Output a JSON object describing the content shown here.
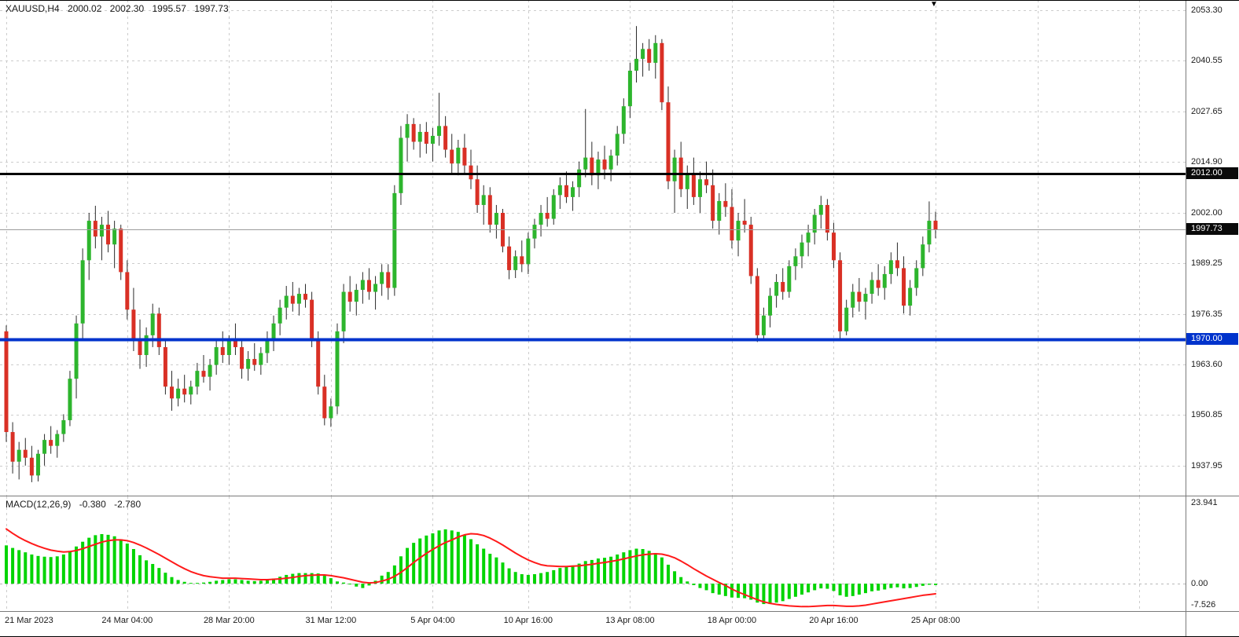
{
  "header": {
    "symbol_period": "XAUUSD,H4",
    "open": "2000.02",
    "high": "2002.30",
    "low": "1995.57",
    "close": "1997.73"
  },
  "indicator": {
    "name": "MACD(12,26,9)",
    "value_main": "-0.380",
    "value_signal": "-2.780"
  },
  "icons": {
    "shift_marker": "▼"
  },
  "colors": {
    "background": "#ffffff",
    "grid": "#cccccc",
    "candle_up": "#2db52d",
    "candle_down": "#d93025",
    "wick": "#2b2b2b",
    "macd_histogram": "#00d400",
    "macd_signal": "#ff1a1a",
    "level_black": "#000000",
    "level_blue": "#0033cc",
    "bid_line": "#9b9b9b",
    "axis_text": "#1a1a1a",
    "badge_text": "#ffffff"
  },
  "price_axis": {
    "ticks": [
      "2053.30",
      "2040.55",
      "2027.65",
      "2014.90",
      "2002.00",
      "1989.25",
      "1976.35",
      "1963.60",
      "1950.85",
      "1937.95"
    ]
  },
  "macd_axis": {
    "ticks": [
      "23.941",
      "0.00",
      "-7.526"
    ]
  },
  "chart_data": [
    {
      "type": "candlestick",
      "title": "XAUUSD H4 candlestick chart",
      "symbol": "XAUUSD",
      "timeframe": "H4",
      "y_range": [
        1930.4,
        2055.9
      ],
      "grid": true,
      "levels": [
        {
          "price": 2012.0,
          "label": "2012.00",
          "color": "#000000",
          "width": 3,
          "badge_color": "#0a0a0a",
          "role": "resistance"
        },
        {
          "price": 1997.73,
          "label": "1997.73",
          "color": "#9b9b9b",
          "width": 1,
          "badge_color": "#0a0a0a",
          "role": "bid"
        },
        {
          "price": 1970.0,
          "label": "1970.00",
          "color": "#0033cc",
          "width": 4,
          "badge_color": "#0033cc",
          "role": "support"
        }
      ],
      "x_labels": [
        {
          "label": "21 Mar 2023",
          "bar": 0
        },
        {
          "label": "24 Mar 04:00",
          "bar": 19
        },
        {
          "label": "28 Mar 20:00",
          "bar": 35
        },
        {
          "label": "31 Mar 12:00",
          "bar": 51
        },
        {
          "label": "5 Apr 04:00",
          "bar": 67
        },
        {
          "label": "10 Apr 16:00",
          "bar": 82
        },
        {
          "label": "13 Apr 08:00",
          "bar": 98
        },
        {
          "label": "18 Apr 00:00",
          "bar": 114
        },
        {
          "label": "20 Apr 16:00",
          "bar": 130
        },
        {
          "label": "25 Apr 08:00",
          "bar": 146
        }
      ],
      "future_grid_bars": [
        162,
        178
      ],
      "candles": [
        [
          1972,
          1973.5,
          1944,
          1946.5
        ],
        [
          1946.5,
          1949,
          1936,
          1939
        ],
        [
          1939,
          1944,
          1934.5,
          1942
        ],
        [
          1942,
          1945,
          1938,
          1940
        ],
        [
          1940,
          1943,
          1933.8,
          1935.5
        ],
        [
          1935.5,
          1942,
          1934,
          1941
        ],
        [
          1941,
          1946,
          1938,
          1944.5
        ],
        [
          1944.5,
          1948,
          1941,
          1943
        ],
        [
          1943,
          1947,
          1940,
          1946
        ],
        [
          1946,
          1951,
          1944,
          1949.5
        ],
        [
          1949.5,
          1962,
          1948,
          1960
        ],
        [
          1960,
          1976,
          1955,
          1974
        ],
        [
          1974,
          1993,
          1970,
          1990
        ],
        [
          1990,
          2002,
          1985,
          2000
        ],
        [
          2000,
          2003.8,
          1993,
          1996
        ],
        [
          1996,
          2001,
          1990,
          1999
        ],
        [
          1999,
          2002.5,
          1992,
          1994
        ],
        [
          1994,
          2000,
          1988,
          1998
        ],
        [
          1998,
          1999,
          1985,
          1987
        ],
        [
          1987,
          1990,
          1975,
          1977.5
        ],
        [
          1977.5,
          1983,
          1967,
          1970
        ],
        [
          1970,
          1975,
          1962.5,
          1966
        ],
        [
          1966,
          1973,
          1963,
          1971
        ],
        [
          1971,
          1979,
          1968,
          1976.5
        ],
        [
          1976.5,
          1978,
          1966,
          1968
        ],
        [
          1968,
          1970,
          1956,
          1958
        ],
        [
          1958,
          1962,
          1951.9,
          1955
        ],
        [
          1955,
          1960,
          1953,
          1957.5
        ],
        [
          1957.5,
          1961,
          1954,
          1956
        ],
        [
          1956,
          1959.5,
          1953.5,
          1958
        ],
        [
          1958,
          1964,
          1956,
          1962
        ],
        [
          1962,
          1966,
          1959,
          1960.5
        ],
        [
          1960.5,
          1965,
          1957,
          1963.5
        ],
        [
          1963.5,
          1970,
          1961,
          1968
        ],
        [
          1968,
          1972,
          1964,
          1966
        ],
        [
          1966,
          1971,
          1963.5,
          1970
        ],
        [
          1970,
          1974,
          1966,
          1968
        ],
        [
          1968,
          1970,
          1960,
          1962.5
        ],
        [
          1962.5,
          1967,
          1959.5,
          1965
        ],
        [
          1965,
          1969,
          1962,
          1963.5
        ],
        [
          1963.5,
          1968,
          1961,
          1966.5
        ],
        [
          1966.5,
          1972,
          1964,
          1970
        ],
        [
          1970,
          1976,
          1967,
          1974
        ],
        [
          1974,
          1980,
          1971,
          1978
        ],
        [
          1978,
          1983.5,
          1975,
          1981
        ],
        [
          1981,
          1984.5,
          1977,
          1979
        ],
        [
          1979,
          1983,
          1976,
          1981.5
        ],
        [
          1981.5,
          1984,
          1978,
          1980
        ],
        [
          1980,
          1982,
          1968,
          1970
        ],
        [
          1970,
          1972,
          1956,
          1958
        ],
        [
          1958,
          1961,
          1948.2,
          1950
        ],
        [
          1950,
          1955,
          1947.8,
          1953
        ],
        [
          1953,
          1974,
          1951,
          1972
        ],
        [
          1972,
          1984,
          1969,
          1982
        ],
        [
          1982,
          1986,
          1977,
          1979.5
        ],
        [
          1979.5,
          1984,
          1976,
          1982.5
        ],
        [
          1982.5,
          1987,
          1979,
          1985
        ],
        [
          1985,
          1988,
          1980,
          1982
        ],
        [
          1982,
          1986,
          1977.5,
          1984
        ],
        [
          1984,
          1989,
          1981,
          1987
        ],
        [
          1987,
          1989,
          1980,
          1983
        ],
        [
          1983,
          2009,
          1981,
          2007
        ],
        [
          2007,
          2024,
          2004,
          2021
        ],
        [
          2021,
          2027,
          2015,
          2024.5
        ],
        [
          2024.5,
          2026,
          2018,
          2020
        ],
        [
          2020,
          2024.5,
          2016,
          2022.5
        ],
        [
          2022.5,
          2025,
          2017,
          2019.5
        ],
        [
          2019.5,
          2023.5,
          2015,
          2021.5
        ],
        [
          2021.5,
          2032.4,
          2019,
          2024
        ],
        [
          2024,
          2026.5,
          2016,
          2018
        ],
        [
          2018,
          2022,
          2012,
          2014.5
        ],
        [
          2014.5,
          2020.5,
          2011.5,
          2018.5
        ],
        [
          2018.5,
          2022,
          2012,
          2014
        ],
        [
          2014,
          2018,
          2008,
          2010.5
        ],
        [
          2010.5,
          2014,
          2002,
          2004
        ],
        [
          2004,
          2009,
          1999,
          2006.5
        ],
        [
          2006.5,
          2008.5,
          1997,
          1999
        ],
        [
          1999,
          2004,
          1995.5,
          2002
        ],
        [
          2002,
          2003,
          1992,
          1993.5
        ],
        [
          1993.5,
          1996,
          1985.2,
          1987.5
        ],
        [
          1987.5,
          1992.5,
          1985.5,
          1991
        ],
        [
          1991,
          1995,
          1987,
          1989
        ],
        [
          1989,
          1997,
          1986.5,
          1995.5
        ],
        [
          1995.5,
          2000.5,
          1993,
          1999
        ],
        [
          1999,
          2004,
          1996,
          2002
        ],
        [
          2002,
          2006,
          1998.5,
          2000.5
        ],
        [
          2000.5,
          2008,
          1999,
          2006.5
        ],
        [
          2006.5,
          2011,
          2003,
          2009
        ],
        [
          2009,
          2012.5,
          2004.5,
          2006
        ],
        [
          2006,
          2010,
          2002.5,
          2008.5
        ],
        [
          2008.5,
          2015,
          2006,
          2013
        ],
        [
          2013,
          2028.3,
          2011,
          2016
        ],
        [
          2016,
          2020,
          2009,
          2011.5
        ],
        [
          2011.5,
          2017.5,
          2008,
          2015.5
        ],
        [
          2015.5,
          2019,
          2010.5,
          2013
        ],
        [
          2013,
          2018,
          2010,
          2016.5
        ],
        [
          2016.5,
          2024,
          2014,
          2022
        ],
        [
          2022,
          2031,
          2019.5,
          2029
        ],
        [
          2029,
          2040,
          2026,
          2038
        ],
        [
          2038,
          2049.3,
          2035,
          2041
        ],
        [
          2041,
          2045,
          2036.5,
          2043.5
        ],
        [
          2043.5,
          2046,
          2038,
          2040
        ],
        [
          2040,
          2047,
          2036,
          2045
        ],
        [
          2045,
          2046,
          2028,
          2030
        ],
        [
          2030,
          2034,
          2008,
          2010
        ],
        [
          2010,
          2018,
          2002,
          2016
        ],
        [
          2016,
          2020,
          2006,
          2008
        ],
        [
          2008,
          2014,
          2003,
          2012
        ],
        [
          2012,
          2016,
          2004,
          2006
        ],
        [
          2006,
          2012.5,
          2002,
          2010.5
        ],
        [
          2010.5,
          2015,
          2007,
          2009
        ],
        [
          2009,
          2013,
          1998,
          2000
        ],
        [
          2000,
          2007,
          1996.5,
          2005
        ],
        [
          2005,
          2009.5,
          2001,
          2003.5
        ],
        [
          2003.5,
          2008,
          1993,
          1995
        ],
        [
          1995,
          2002,
          1991,
          2000
        ],
        [
          2000,
          2005.5,
          1997,
          1999
        ],
        [
          1999,
          2001,
          1984,
          1986
        ],
        [
          1986,
          1988,
          1969.3,
          1971
        ],
        [
          1971,
          1978,
          1969.8,
          1976
        ],
        [
          1976,
          1983,
          1973,
          1981
        ],
        [
          1981,
          1986.5,
          1978,
          1984.5
        ],
        [
          1984.5,
          1988,
          1980,
          1982
        ],
        [
          1982,
          1990,
          1980.5,
          1988.5
        ],
        [
          1988.5,
          1993,
          1985,
          1991
        ],
        [
          1991,
          1996.5,
          1988,
          1994.5
        ],
        [
          1994.5,
          1999,
          1991,
          1997
        ],
        [
          1997,
          2003,
          1994,
          2001.5
        ],
        [
          2001.5,
          2006.3,
          1998,
          2004
        ],
        [
          2004,
          2005.5,
          1995,
          1997
        ],
        [
          1997,
          1999.5,
          1988,
          1990
        ],
        [
          1990,
          1992,
          1969.8,
          1972
        ],
        [
          1972,
          1980,
          1971,
          1978
        ],
        [
          1978,
          1984,
          1975.5,
          1982
        ],
        [
          1982,
          1985.5,
          1977,
          1979.5
        ],
        [
          1979.5,
          1983,
          1975,
          1981.5
        ],
        [
          1981.5,
          1987,
          1979,
          1985
        ],
        [
          1985,
          1989,
          1981,
          1983
        ],
        [
          1983,
          1988.5,
          1980,
          1986.5
        ],
        [
          1986.5,
          1992,
          1984,
          1990
        ],
        [
          1990,
          1994.5,
          1986,
          1988
        ],
        [
          1988,
          1991,
          1976.5,
          1978.5
        ],
        [
          1978.5,
          1985,
          1976,
          1983
        ],
        [
          1983,
          1990,
          1981,
          1988
        ],
        [
          1988,
          1996,
          1986,
          1994
        ],
        [
          1994,
          2004.9,
          1992,
          2000
        ],
        [
          2000.02,
          2002.3,
          1995.57,
          1997.73
        ]
      ]
    },
    {
      "type": "bar",
      "name": "MACD(12,26,9)",
      "value_main": -0.38,
      "value_signal": -2.78,
      "y_range": [
        -7.526,
        23.941
      ],
      "y_ticks": [
        23.941,
        0.0,
        -7.526
      ],
      "macd": [
        10.5,
        9.8,
        9.2,
        8.6,
        8.0,
        7.6,
        7.4,
        7.3,
        7.5,
        8.0,
        9.0,
        10.2,
        11.5,
        12.6,
        13.3,
        13.6,
        13.4,
        13.0,
        12.2,
        11.0,
        9.5,
        7.8,
        6.4,
        5.4,
        4.3,
        3.0,
        1.8,
        1.0,
        0.5,
        0.2,
        0.2,
        0.3,
        0.5,
        0.8,
        1.0,
        1.2,
        1.2,
        1.0,
        0.8,
        0.7,
        0.8,
        1.0,
        1.4,
        1.9,
        2.4,
        2.7,
        2.9,
        2.9,
        2.9,
        2.8,
        2.3,
        1.5,
        0.6,
        0.3,
        -0.2,
        -0.8,
        -1.2,
        -0.5,
        0.8,
        2.2,
        3.2,
        5.0,
        7.5,
        9.8,
        11.2,
        12.4,
        13.2,
        13.8,
        14.6,
        14.9,
        14.6,
        14.2,
        13.4,
        12.2,
        10.8,
        9.6,
        8.2,
        7.2,
        5.8,
        4.2,
        3.2,
        2.6,
        2.4,
        2.6,
        2.9,
        3.2,
        3.7,
        4.3,
        4.6,
        5.0,
        5.5,
        6.2,
        6.5,
        6.9,
        7.1,
        7.4,
        8.0,
        8.6,
        9.2,
        9.6,
        9.5,
        9.0,
        8.4,
        7.2,
        5.2,
        3.4,
        1.8,
        0.6,
        -0.4,
        -1.2,
        -1.8,
        -2.6,
        -3.0,
        -3.4,
        -3.8,
        -3.9,
        -4.0,
        -4.4,
        -5.2,
        -5.6,
        -5.6,
        -5.2,
        -4.8,
        -4.2,
        -3.6,
        -3.0,
        -2.4,
        -1.8,
        -1.3,
        -1.4,
        -2.0,
        -3.2,
        -3.6,
        -3.4,
        -3.0,
        -2.6,
        -2.1,
        -1.9,
        -1.6,
        -1.2,
        -1.0,
        -1.3,
        -1.2,
        -0.9,
        -0.6,
        -0.3,
        -0.38
      ],
      "signal": [
        15.0,
        13.8,
        12.7,
        11.8,
        11.0,
        10.3,
        9.7,
        9.2,
        8.9,
        8.7,
        8.8,
        9.1,
        9.6,
        10.2,
        10.8,
        11.4,
        11.8,
        12.0,
        12.0,
        11.8,
        11.3,
        10.6,
        9.8,
        8.9,
        8.0,
        7.0,
        6.0,
        5.0,
        4.1,
        3.3,
        2.7,
        2.2,
        1.9,
        1.7,
        1.5,
        1.5,
        1.5,
        1.4,
        1.3,
        1.2,
        1.1,
        1.1,
        1.2,
        1.3,
        1.5,
        1.7,
        2.0,
        2.2,
        2.3,
        2.4,
        2.4,
        2.2,
        1.9,
        1.6,
        1.2,
        0.8,
        0.4,
        0.2,
        0.3,
        0.7,
        1.2,
        2.0,
        3.1,
        4.4,
        5.8,
        7.1,
        8.3,
        9.4,
        10.4,
        11.3,
        12.0,
        12.8,
        13.4,
        13.7,
        13.6,
        13.2,
        12.5,
        11.6,
        10.6,
        9.5,
        8.4,
        7.4,
        6.5,
        5.8,
        5.2,
        4.9,
        4.8,
        4.7,
        4.7,
        4.8,
        4.9,
        5.1,
        5.3,
        5.6,
        5.8,
        6.1,
        6.4,
        6.8,
        7.2,
        7.6,
        7.9,
        8.1,
        8.2,
        8.1,
        7.7,
        7.1,
        6.2,
        5.2,
        4.1,
        3.1,
        2.1,
        1.2,
        0.3,
        -0.5,
        -1.5,
        -2.3,
        -3.0,
        -3.7,
        -4.4,
        -5.0,
        -5.4,
        -5.7,
        -5.9,
        -6.1,
        -6.2,
        -6.3,
        -6.3,
        -6.2,
        -6.1,
        -6.0,
        -6.0,
        -6.1,
        -6.2,
        -6.2,
        -6.1,
        -5.9,
        -5.6,
        -5.3,
        -5.0,
        -4.7,
        -4.4,
        -4.1,
        -3.8,
        -3.5,
        -3.2,
        -3.0,
        -2.78
      ]
    }
  ]
}
